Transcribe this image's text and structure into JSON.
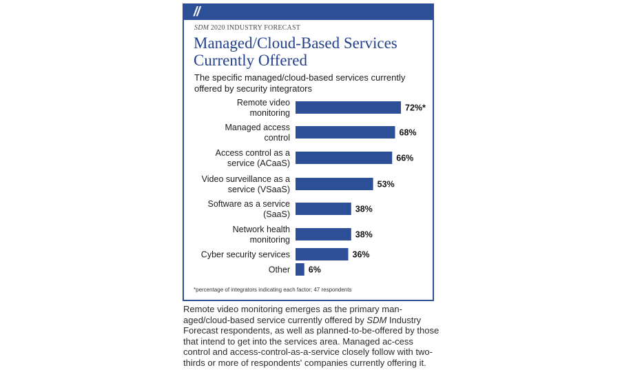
{
  "panel": {
    "slashes": "//",
    "kicker_italic": "SDM",
    "kicker_rest": "2020 INDUSTRY FORECAST",
    "title": "Managed/Cloud-Based Services Currently Offered",
    "subtitle": "The specific managed/cloud-based services currently offered by security integrators",
    "footnote": "*percentage of integrators indicating each factor; 47 respondents"
  },
  "caption": {
    "part1": "Remote video monitoring emerges as the primary man-aged/cloud-based service currently offered by ",
    "italic": "SDM",
    "part2": " Industry Forecast respondents, as well as planned-to-be-offered by those that intend to get into the services area. Managed ac-cess control and access-control-as-a-service closely follow with two-thirds or more of respondents' companies currently offering it."
  },
  "colors": {
    "bar": "#2d4f97",
    "frame": "#2d4f97",
    "title": "#23418a"
  },
  "chart_data": {
    "type": "bar",
    "orientation": "horizontal",
    "categories": [
      [
        "Remote video",
        "monitoring"
      ],
      [
        "Managed access",
        "control"
      ],
      [
        "Access control as a",
        "service (ACaaS)"
      ],
      [
        "Video surveillance as a",
        "service (VSaaS)"
      ],
      [
        "Software as a service",
        "(SaaS)"
      ],
      [
        "Network health",
        "monitoring"
      ],
      [
        "Cyber security services"
      ],
      [
        "Other"
      ]
    ],
    "values": [
      72,
      68,
      66,
      53,
      38,
      38,
      36,
      6
    ],
    "value_labels": [
      "72%*",
      "68%",
      "66%",
      "53%",
      "38%",
      "38%",
      "36%",
      "6%"
    ],
    "xlim": [
      0,
      100
    ],
    "grid": false,
    "legend": "none"
  }
}
